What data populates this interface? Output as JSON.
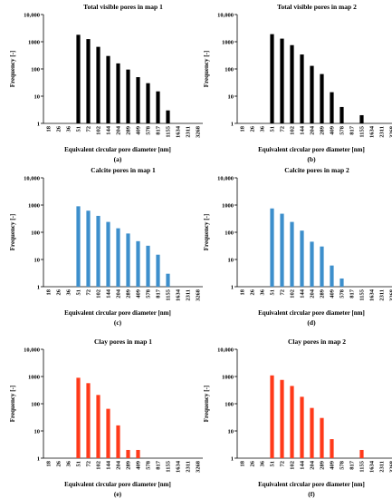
{
  "chart_data": [
    {
      "type": "bar",
      "caption": "(a)",
      "title": "Total visible pores in map 1",
      "xlabel": "Equivalent circular pore diameter [nm]",
      "ylabel": "Frequency [-]",
      "yscale": "log",
      "ylim": [
        1,
        10000
      ],
      "yticks": [
        "1",
        "10",
        "100",
        "1000",
        "10,000"
      ],
      "color": "#000000",
      "categories": [
        "18",
        "26",
        "36",
        "51",
        "72",
        "102",
        "144",
        "204",
        "289",
        "409",
        "578",
        "817",
        "1155",
        "1634",
        "2311",
        "3268"
      ],
      "values": [
        0,
        0,
        0,
        1800,
        1250,
        650,
        300,
        160,
        95,
        50,
        30,
        15,
        3,
        0,
        0,
        0
      ]
    },
    {
      "type": "bar",
      "caption": "(b)",
      "title": "Total visible pores in map 2",
      "xlabel": "Equivalent circular pore diameter [nm]",
      "ylabel": "Frequency [-]",
      "yscale": "log",
      "ylim": [
        1,
        10000
      ],
      "yticks": [
        "1",
        "10",
        "100",
        "1000",
        "10,000"
      ],
      "color": "#000000",
      "categories": [
        "18",
        "26",
        "36",
        "51",
        "72",
        "102",
        "144",
        "204",
        "289",
        "409",
        "578",
        "817",
        "1155",
        "1634",
        "2311",
        "3268"
      ],
      "values": [
        0,
        0,
        0,
        1900,
        1300,
        750,
        340,
        130,
        65,
        14,
        4,
        0,
        2,
        0,
        0,
        0
      ]
    },
    {
      "type": "bar",
      "caption": "(c)",
      "title": "Calcite pores in map 1",
      "xlabel": "Equivalent circular pore diameter [nm]",
      "ylabel": "Frequency [-]",
      "yscale": "log",
      "ylim": [
        1,
        10000
      ],
      "yticks": [
        "1",
        "10",
        "100",
        "1000",
        "10,000"
      ],
      "color": "#3d8fcc",
      "categories": [
        "18",
        "26",
        "36",
        "51",
        "72",
        "102",
        "144",
        "204",
        "289",
        "409",
        "578",
        "817",
        "1155",
        "1634",
        "2311",
        "3268"
      ],
      "values": [
        0,
        0,
        0,
        900,
        620,
        400,
        240,
        140,
        90,
        47,
        32,
        15,
        3,
        0,
        0,
        0
      ]
    },
    {
      "type": "bar",
      "caption": "(d)",
      "title": "Calcite pores in map 2",
      "xlabel": "Equivalent circular pore diameter [nm]",
      "ylabel": "Frequency [-]",
      "yscale": "log",
      "ylim": [
        1,
        10000
      ],
      "yticks": [
        "1",
        "10",
        "100",
        "1000",
        "10,000"
      ],
      "color": "#3d8fcc",
      "categories": [
        "18",
        "26",
        "36",
        "51",
        "72",
        "102",
        "144",
        "204",
        "289",
        "409",
        "578",
        "817",
        "1155",
        "1634",
        "2311",
        "3268"
      ],
      "values": [
        0,
        0,
        0,
        750,
        480,
        240,
        115,
        45,
        30,
        6,
        2,
        0,
        0,
        0,
        0,
        0
      ]
    },
    {
      "type": "bar",
      "caption": "(e)",
      "title": "Clay pores in map 1",
      "xlabel": "Equivalent circular pore diameter [nm]",
      "ylabel": "Frequency [-]",
      "yscale": "log",
      "ylim": [
        1,
        10000
      ],
      "yticks": [
        "1",
        "10",
        "100",
        "1000",
        "10,000"
      ],
      "color": "#ff3a1a",
      "categories": [
        "18",
        "26",
        "36",
        "51",
        "72",
        "102",
        "144",
        "204",
        "289",
        "409",
        "578",
        "817",
        "1155",
        "1634",
        "2311",
        "3268"
      ],
      "values": [
        0,
        0,
        0,
        900,
        570,
        210,
        65,
        16,
        2,
        2,
        0,
        0,
        0,
        0,
        0,
        0
      ]
    },
    {
      "type": "bar",
      "caption": "(f)",
      "title": "Clay pores in map 2",
      "xlabel": "Equivalent circular pore diameter [nm]",
      "ylabel": "Frequency [-]",
      "yscale": "log",
      "ylim": [
        1,
        10000
      ],
      "yticks": [
        "1",
        "10",
        "100",
        "1000",
        "10,000"
      ],
      "color": "#ff3a1a",
      "categories": [
        "18",
        "26",
        "36",
        "51",
        "72",
        "102",
        "144",
        "204",
        "289",
        "409",
        "578",
        "817",
        "1155",
        "1634",
        "2311",
        "3268"
      ],
      "values": [
        0,
        0,
        0,
        1100,
        750,
        450,
        180,
        70,
        30,
        5,
        0,
        0,
        2,
        0,
        0,
        0
      ]
    }
  ]
}
